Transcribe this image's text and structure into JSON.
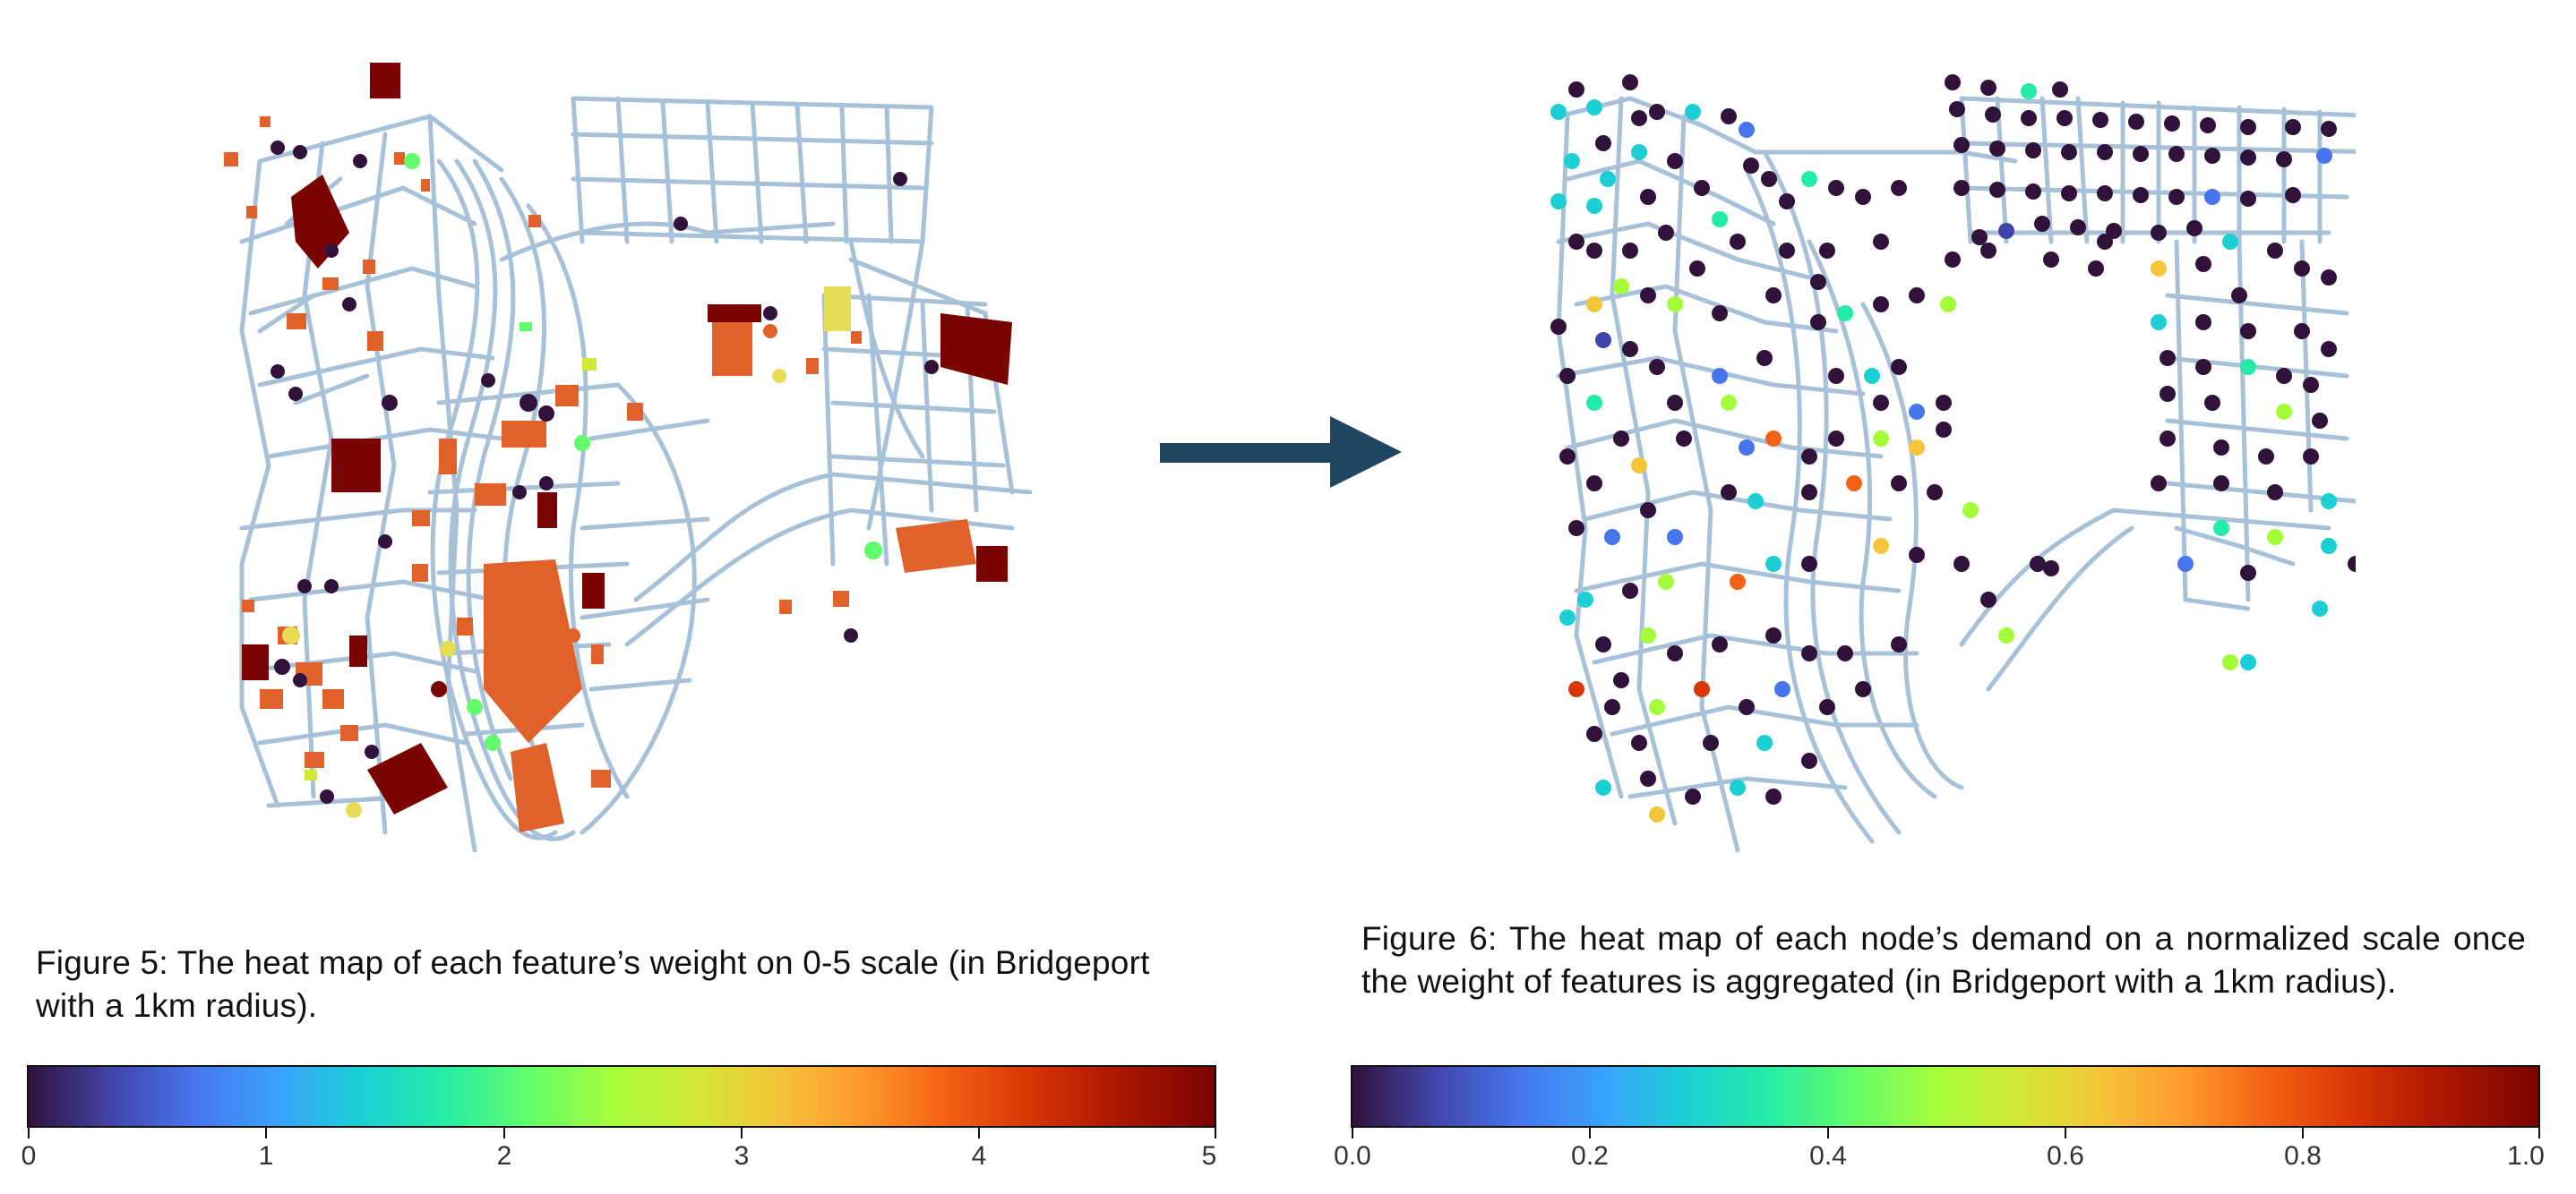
{
  "figure5": {
    "caption": "Figure 5: The heat map of each feature’s weight on 0-5 scale (in Bridgeport with a 1km radius).",
    "colorbar_ticks": [
      "0",
      "1",
      "2",
      "3",
      "4",
      "5"
    ]
  },
  "figure6": {
    "caption": "Figure 6: The heat map of each node’s demand on a normalized scale once the weight of features is aggregated (in Bridgeport with a 1km radius).",
    "colorbar_ticks": [
      "0.0",
      "0.2",
      "0.4",
      "0.6",
      "0.8",
      "1.0"
    ]
  },
  "colors": {
    "street": "#9ebbd4",
    "arrow": "#1f4660",
    "colormap": "turbo"
  }
}
